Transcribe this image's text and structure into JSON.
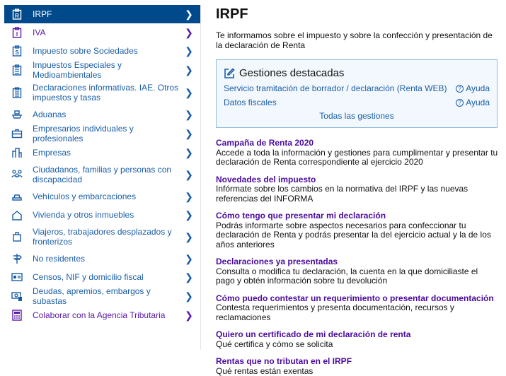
{
  "sidebar": {
    "items": [
      {
        "label": "IRPF",
        "icon": "clipboard-r-icon",
        "state": "active"
      },
      {
        "label": "IVA",
        "icon": "clipboard-i-icon",
        "state": "visited"
      },
      {
        "label": "Impuesto sobre Sociedades",
        "icon": "clipboard-s-icon"
      },
      {
        "label": "Impuestos Especiales y Medioambientales",
        "icon": "clipboard-list-icon"
      },
      {
        "label": "Declaraciones informativas. IAE. Otros impuestos y tasas",
        "icon": "clipboard-list-icon"
      },
      {
        "label": "Aduanas",
        "icon": "ship-icon"
      },
      {
        "label": "Empresarios individuales y profesionales",
        "icon": "briefcase-icon"
      },
      {
        "label": "Empresas",
        "icon": "buildings-icon"
      },
      {
        "label": "Ciudadanos, familias y personas con discapacidad",
        "icon": "family-icon"
      },
      {
        "label": "Vehículos y embarcaciones",
        "icon": "car-icon"
      },
      {
        "label": "Vivienda y otros inmuebles",
        "icon": "house-icon"
      },
      {
        "label": "Viajeros, trabajadores desplazados y fronterizos",
        "icon": "luggage-icon"
      },
      {
        "label": "No residentes",
        "icon": "signpost-icon"
      },
      {
        "label": "Censos, NIF y domicilio fiscal",
        "icon": "id-card-icon"
      },
      {
        "label": "Deudas, apremios, embargos y subastas",
        "icon": "money-icon"
      },
      {
        "label": "Colaborar con la Agencia Tributaria",
        "icon": "calculator-icon",
        "state": "visited"
      }
    ]
  },
  "main": {
    "title": "IRPF",
    "description": "Te informamos sobre el impuesto y sobre la confección y presentación de la declaración de Renta",
    "gestiones": {
      "title": "Gestiones destacadas",
      "rows": [
        {
          "label": "Servicio tramitación de borrador / declaración (Renta WEB)",
          "help": "Ayuda"
        },
        {
          "label": "Datos fiscales",
          "help": "Ayuda"
        }
      ],
      "all": "Todas las gestiones"
    },
    "sections": [
      {
        "title": "Campaña de Renta 2020",
        "text": "Accede a toda la información y gestiones para cumplimentar y presentar tu declaración de Renta correspondiente al ejercicio 2020"
      },
      {
        "title": "Novedades del impuesto",
        "text": "Infórmate sobre los cambios en la normativa del IRPF y las nuevas referencias del INFORMA"
      },
      {
        "title": "Cómo tengo que presentar mi declaración",
        "text": "Podrás informarte sobre aspectos necesarios para confeccionar tu declaración de Renta y podrás presentar la del ejercicio actual y la de los años anteriores"
      },
      {
        "title": "Declaraciones ya presentadas",
        "text": "Consulta o modifica tu declaración, la cuenta en la que domiciliaste el pago y obtén información sobre tu devolución"
      },
      {
        "title": "Cómo puedo contestar un requerimiento o presentar documentación",
        "text": "Contesta requerimientos y presenta documentación, recursos y reclamaciones"
      },
      {
        "title": "Quiero un certificado de mi declaración de renta",
        "text": "Qué certifica y cómo se solicita"
      },
      {
        "title": "Rentas que no tributan en el IRPF",
        "text": "Qué rentas están exentas"
      }
    ]
  },
  "colors": {
    "active_bg": "#004a8c",
    "link": "#1a5ea8",
    "visited": "#5b1aa8",
    "heading": "#4b0b9e",
    "box_border": "#8fbbe3",
    "box_bg": "#f2f8fd"
  }
}
